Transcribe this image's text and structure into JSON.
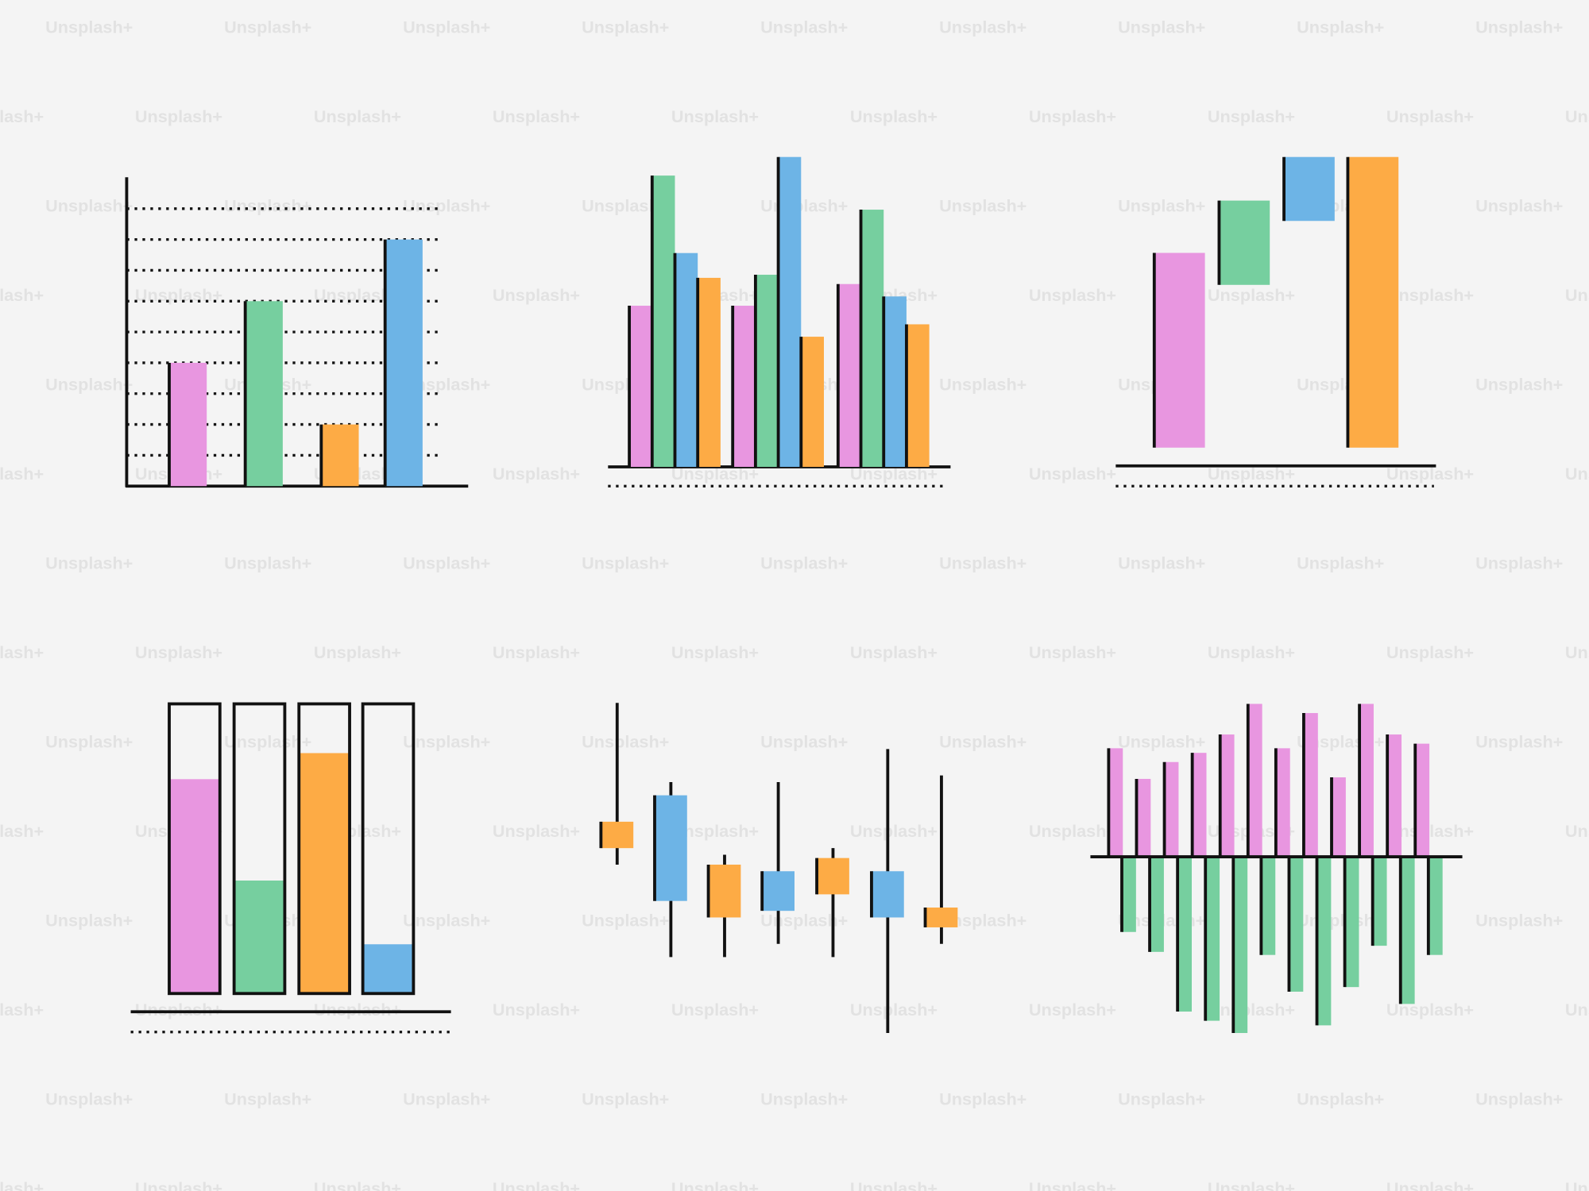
{
  "watermark": "Unsplash+",
  "chart_data": [
    {
      "type": "bar",
      "values": [
        4,
        6,
        2,
        8
      ],
      "colors": [
        "#e896e0",
        "#76cf9f",
        "#fdab45",
        "#6db4e6"
      ],
      "ylim": [
        0,
        10
      ],
      "yticks": [
        1,
        2,
        3,
        4,
        5,
        6,
        7,
        8,
        9
      ],
      "grid": true
    },
    {
      "type": "grouped-bar",
      "categories": [
        null,
        null,
        null
      ],
      "series": [
        {
          "color": "#e896e0",
          "values": [
            52,
            52,
            59
          ]
        },
        {
          "color": "#76cf9f",
          "values": [
            94,
            62,
            83
          ]
        },
        {
          "color": "#6db4e6",
          "values": [
            69,
            100,
            55
          ]
        },
        {
          "color": "#fdab45",
          "values": [
            61,
            42,
            46
          ]
        }
      ],
      "ylim": [
        0,
        100
      ]
    },
    {
      "type": "floating-bar",
      "low": [
        0,
        56,
        78,
        0
      ],
      "high": [
        67,
        85,
        100,
        100
      ],
      "colors": [
        "#e896e0",
        "#76cf9f",
        "#6db4e6",
        "#fdab45"
      ],
      "ylim": [
        0,
        100
      ]
    },
    {
      "type": "progress",
      "values": [
        74,
        39,
        83,
        17
      ],
      "colors": [
        "#e896e0",
        "#76cf9f",
        "#fdab45",
        "#6db4e6"
      ],
      "ylim": [
        0,
        100
      ]
    },
    {
      "type": "candlestick",
      "open": [
        56,
        72,
        35,
        49,
        42,
        49,
        32
      ],
      "close": [
        64,
        40,
        51,
        37,
        53,
        35,
        38
      ],
      "high": [
        100,
        76,
        54,
        76,
        56,
        86,
        78
      ],
      "low": [
        51,
        23,
        23,
        27,
        23,
        0,
        27
      ],
      "up_color": "#fdab45",
      "down_color": "#6db4e6",
      "ylim": [
        0,
        100
      ]
    },
    {
      "type": "grouped-bar",
      "categories": [
        null,
        null,
        null,
        null,
        null,
        null,
        null,
        null,
        null,
        null,
        null,
        null
      ],
      "series": [
        {
          "color": "#e896e0",
          "values": [
            71,
            51,
            62,
            68,
            80,
            100,
            71,
            94,
            52,
            100,
            80,
            74
          ]
        },
        {
          "color": "#76cf9f",
          "values": [
            -49,
            -62,
            -101,
            -107,
            -115,
            -64,
            -88,
            -110,
            -85,
            -58,
            -96,
            -64
          ]
        }
      ],
      "ylim": [
        -115,
        100
      ]
    }
  ]
}
